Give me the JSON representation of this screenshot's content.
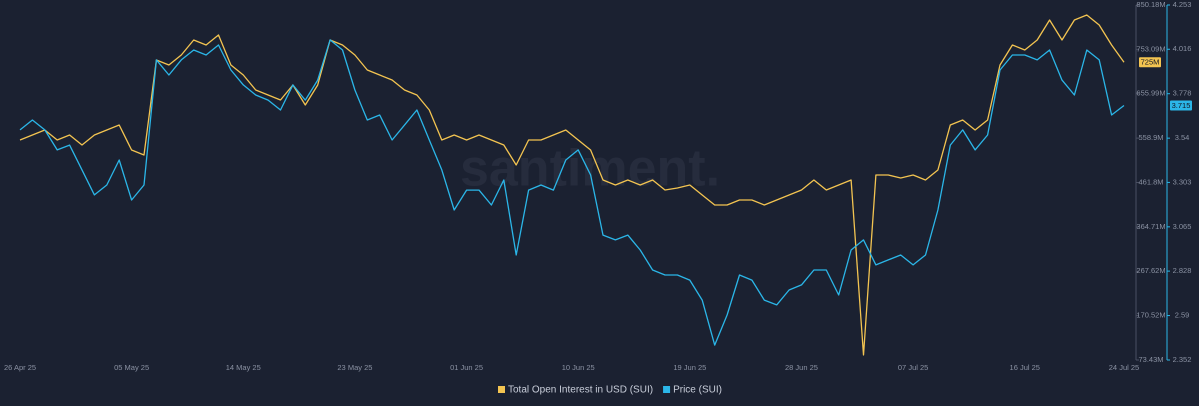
{
  "chart_data": {
    "type": "line",
    "watermark": "santiment.",
    "categories": [
      "26 Apr 25",
      null,
      null,
      null,
      null,
      null,
      null,
      null,
      null,
      "05 May 25",
      null,
      null,
      null,
      null,
      null,
      null,
      null,
      null,
      "14 May 25",
      null,
      null,
      null,
      null,
      null,
      null,
      null,
      null,
      "23 May 25",
      null,
      null,
      null,
      null,
      null,
      null,
      null,
      null,
      "01 Jun 25",
      null,
      null,
      null,
      null,
      null,
      null,
      null,
      null,
      "10 Jun 25",
      null,
      null,
      null,
      null,
      null,
      null,
      null,
      null,
      "19 Jun 25",
      null,
      null,
      null,
      null,
      null,
      null,
      null,
      null,
      "28 Jun 25",
      null,
      null,
      null,
      null,
      null,
      null,
      null,
      null,
      "07 Jul 25",
      null,
      null,
      null,
      null,
      null,
      null,
      null,
      null,
      "16 Jul 25",
      null,
      null,
      null,
      null,
      null,
      null,
      null,
      "24 Jul 25"
    ],
    "series": [
      {
        "name": "Total Open Interest in USD (SUI)",
        "color": "#f3c451",
        "axis": "y",
        "last_value": {
          "value": 725,
          "label": "725M"
        },
        "values": [
          554.8,
          565.7,
          576.7,
          554.8,
          565.7,
          543.8,
          565.7,
          576.7,
          587.6,
          532.9,
          522.0,
          729.8,
          718.9,
          740.8,
          773.6,
          762.6,
          784.5,
          718.9,
          697.0,
          664.2,
          653.3,
          642.3,
          675.1,
          631.4,
          675.1,
          773.6,
          762.6,
          740.8,
          708.0,
          697.0,
          686.1,
          664.2,
          653.3,
          620.4,
          554.8,
          565.7,
          554.8,
          565.7,
          554.8,
          543.8,
          500.1,
          554.8,
          554.8,
          565.7,
          576.7,
          554.8,
          532.9,
          467.3,
          456.3,
          467.3,
          456.3,
          467.3,
          445.4,
          449.8,
          456.3,
          434.5,
          412.6,
          412.6,
          423.5,
          423.5,
          412.6,
          423.5,
          434.5,
          445.4,
          467.3,
          445.4,
          456.3,
          467.3,
          84.4,
          478.2,
          478.2,
          471.6,
          478.2,
          467.3,
          489.1,
          587.6,
          598.6,
          576.7,
          598.6,
          718.9,
          762.6,
          751.7,
          773.6,
          817.4,
          773.6,
          817.4,
          828.3,
          806.4,
          762.6,
          725
        ]
      },
      {
        "name": "Price (SUI)",
        "color": "#2bb6e8",
        "axis": "y2",
        "last_value": {
          "value": 3.715,
          "label": "3.715"
        },
        "values": [
          3.584,
          3.637,
          3.584,
          3.477,
          3.503,
          3.37,
          3.236,
          3.289,
          3.423,
          3.209,
          3.289,
          3.959,
          3.878,
          3.959,
          4.012,
          3.985,
          4.039,
          3.905,
          3.825,
          3.771,
          3.744,
          3.691,
          3.825,
          3.744,
          3.851,
          4.066,
          4.012,
          3.798,
          3.637,
          3.664,
          3.53,
          3.61,
          3.691,
          3.53,
          3.37,
          3.155,
          3.262,
          3.262,
          3.182,
          3.316,
          2.914,
          3.262,
          3.289,
          3.262,
          3.423,
          3.477,
          3.343,
          3.021,
          2.995,
          3.021,
          2.941,
          2.834,
          2.807,
          2.807,
          2.78,
          2.673,
          2.432,
          2.593,
          2.807,
          2.78,
          2.673,
          2.647,
          2.727,
          2.754,
          2.834,
          2.834,
          2.7,
          2.941,
          2.995,
          2.861,
          2.888,
          2.914,
          2.861,
          2.914,
          3.155,
          3.503,
          3.584,
          3.477,
          3.557,
          3.905,
          3.985,
          3.985,
          3.959,
          4.012,
          3.851,
          3.771,
          4.012,
          3.959,
          3.664,
          3.715
        ]
      }
    ],
    "ylim": [
      73.43,
      850.18
    ],
    "yticks": [
      {
        "value": 73.43,
        "label": "73.43M"
      },
      {
        "value": 170.52,
        "label": "170.52M"
      },
      {
        "value": 267.62,
        "label": "267.62M"
      },
      {
        "value": 364.71,
        "label": "364.71M"
      },
      {
        "value": 461.8,
        "label": "461.8M"
      },
      {
        "value": 558.9,
        "label": "558.9M"
      },
      {
        "value": 655.99,
        "label": "655.99M"
      },
      {
        "value": 753.09,
        "label": "753.09M"
      },
      {
        "value": 850.18,
        "label": "850.18M"
      }
    ],
    "y2lim": [
      2.352,
      4.253
    ],
    "y2ticks": [
      2.352,
      2.59,
      2.828,
      3.065,
      3.303,
      3.54,
      3.778,
      4.016,
      4.253
    ],
    "grid": false
  }
}
